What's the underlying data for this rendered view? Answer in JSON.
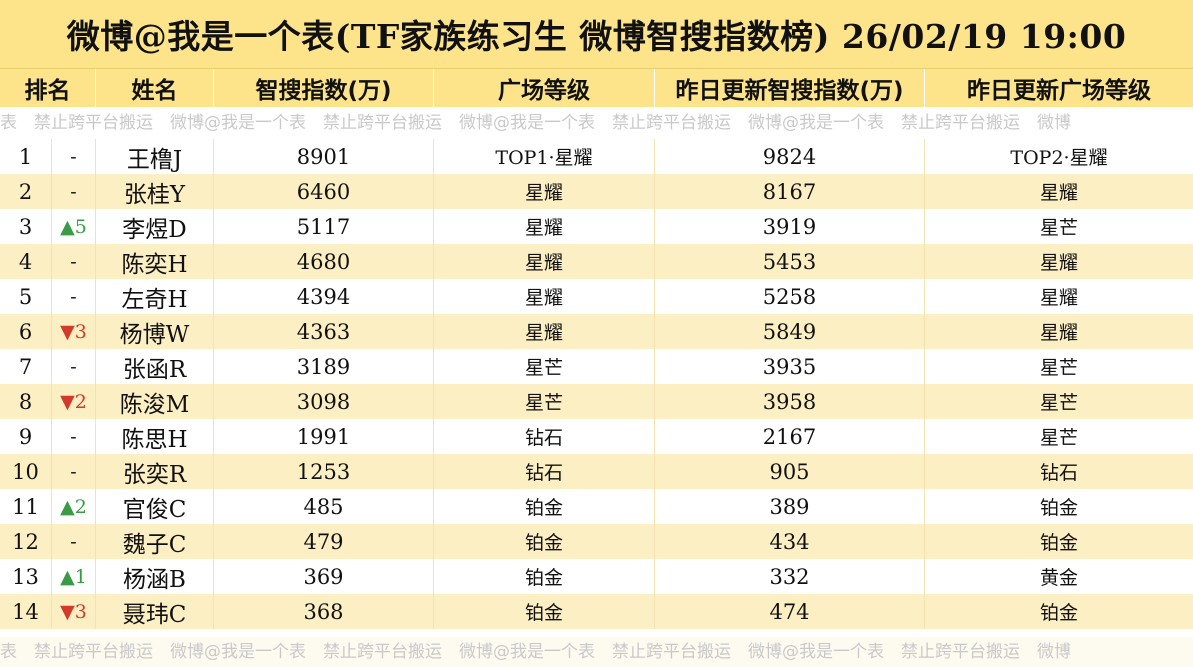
{
  "title": "微博@我是一个表(TF家族练习生 微博智搜指数榜)  26/02/19 19:00",
  "headers": [
    "排名",
    "姓名",
    "智搜指数(万)",
    "广场等级",
    "昨日更新智搜指数(万)",
    "昨日更新广场等级"
  ],
  "watermark_top": [
    "表",
    "禁止跨平台搬运",
    "微博@我是一个表",
    "禁止跨平台搬运",
    "微博@我是一个表",
    "禁止跨平台搬运",
    "微博@我是一个表",
    "禁止跨平台搬运",
    "微博"
  ],
  "watermark_bottom": [
    "表",
    "禁止跨平台搬运",
    "微博@我是一个表",
    "禁止跨平台搬运",
    "微博@我是一个表",
    "禁止跨平台搬运",
    "微博@我是一个表",
    "禁止跨平台搬运",
    "微博"
  ],
  "rows": [
    {
      "rank": "1",
      "change": "-",
      "dir": "flat",
      "name": "王橹J",
      "index": "8901",
      "level": "TOP1·星耀",
      "prev_index": "9824",
      "prev_level": "TOP2·星耀"
    },
    {
      "rank": "2",
      "change": "-",
      "dir": "flat",
      "name": "张桂Y",
      "index": "6460",
      "level": "星耀",
      "prev_index": "8167",
      "prev_level": "星耀"
    },
    {
      "rank": "3",
      "change": "▲5",
      "dir": "up",
      "name": "李煜D",
      "index": "5117",
      "level": "星耀",
      "prev_index": "3919",
      "prev_level": "星芒"
    },
    {
      "rank": "4",
      "change": "-",
      "dir": "flat",
      "name": "陈奕H",
      "index": "4680",
      "level": "星耀",
      "prev_index": "5453",
      "prev_level": "星耀"
    },
    {
      "rank": "5",
      "change": "-",
      "dir": "flat",
      "name": "左奇H",
      "index": "4394",
      "level": "星耀",
      "prev_index": "5258",
      "prev_level": "星耀"
    },
    {
      "rank": "6",
      "change": "▼3",
      "dir": "down",
      "name": "杨博W",
      "index": "4363",
      "level": "星耀",
      "prev_index": "5849",
      "prev_level": "星耀"
    },
    {
      "rank": "7",
      "change": "-",
      "dir": "flat",
      "name": "张函R",
      "index": "3189",
      "level": "星芒",
      "prev_index": "3935",
      "prev_level": "星芒"
    },
    {
      "rank": "8",
      "change": "▼2",
      "dir": "down",
      "name": "陈浚M",
      "index": "3098",
      "level": "星芒",
      "prev_index": "3958",
      "prev_level": "星芒"
    },
    {
      "rank": "9",
      "change": "-",
      "dir": "flat",
      "name": "陈思H",
      "index": "1991",
      "level": "钻石",
      "prev_index": "2167",
      "prev_level": "星芒"
    },
    {
      "rank": "10",
      "change": "-",
      "dir": "flat",
      "name": "张奕R",
      "index": "1253",
      "level": "钻石",
      "prev_index": "905",
      "prev_level": "钻石"
    },
    {
      "rank": "11",
      "change": "▲2",
      "dir": "up",
      "name": "官俊C",
      "index": "485",
      "level": "铂金",
      "prev_index": "389",
      "prev_level": "铂金"
    },
    {
      "rank": "12",
      "change": "-",
      "dir": "flat",
      "name": "魏子C",
      "index": "479",
      "level": "铂金",
      "prev_index": "434",
      "prev_level": "铂金"
    },
    {
      "rank": "13",
      "change": "▲1",
      "dir": "up",
      "name": "杨涵B",
      "index": "369",
      "level": "铂金",
      "prev_index": "332",
      "prev_level": "黄金"
    },
    {
      "rank": "14",
      "change": "▼3",
      "dir": "down",
      "name": "聂玮C",
      "index": "368",
      "level": "铂金",
      "prev_index": "474",
      "prev_level": "铂金"
    }
  ],
  "colors": {
    "header_bg": "#fde48a",
    "row_alt_bg": "#fcefc4",
    "up": "#3b9a45",
    "down": "#d23a2a",
    "watermark": "#c9c9c9"
  }
}
